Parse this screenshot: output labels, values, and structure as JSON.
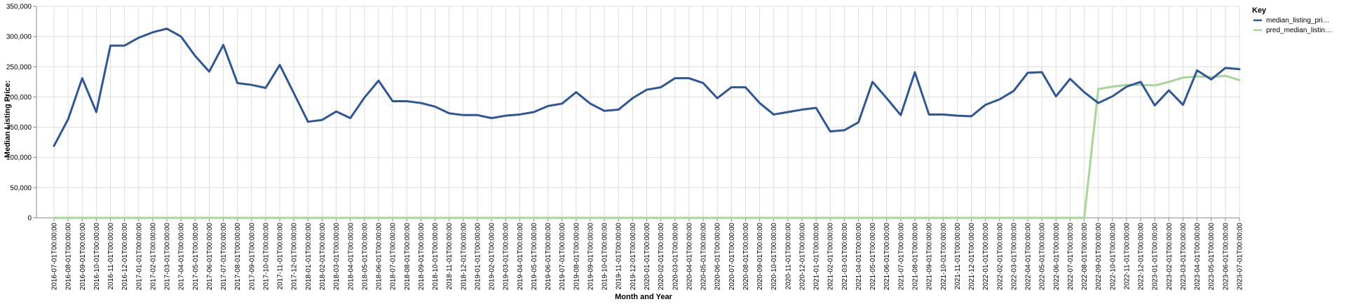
{
  "chart_data": {
    "type": "line",
    "xlabel": "Month and Year",
    "ylabel": "Median Listing Price:",
    "ylim": [
      0,
      350000
    ],
    "yticks": [
      "0",
      "50,000",
      "100,000",
      "150,000",
      "200,000",
      "250,000",
      "300,000",
      "350,000"
    ],
    "grid": true,
    "legend": {
      "title": "Key",
      "placement": "right"
    },
    "x": [
      "2016-07-01T00:00:00",
      "2016-08-01T00:00:00",
      "2016-09-01T00:00:00",
      "2016-10-01T00:00:00",
      "2016-11-01T00:00:00",
      "2016-12-01T00:00:00",
      "2017-01-01T00:00:00",
      "2017-02-01T00:00:00",
      "2017-03-01T00:00:00",
      "2017-04-01T00:00:00",
      "2017-05-01T00:00:00",
      "2017-06-01T00:00:00",
      "2017-07-01T00:00:00",
      "2017-08-01T00:00:00",
      "2017-09-01T00:00:00",
      "2017-10-01T00:00:00",
      "2017-11-01T00:00:00",
      "2017-12-01T00:00:00",
      "2018-01-01T00:00:00",
      "2018-02-01T00:00:00",
      "2018-03-01T00:00:00",
      "2018-04-01T00:00:00",
      "2018-05-01T00:00:00",
      "2018-06-01T00:00:00",
      "2018-07-01T00:00:00",
      "2018-08-01T00:00:00",
      "2018-09-01T00:00:00",
      "2018-10-01T00:00:00",
      "2018-11-01T00:00:00",
      "2018-12-01T00:00:00",
      "2019-01-01T00:00:00",
      "2019-02-01T00:00:00",
      "2019-03-01T00:00:00",
      "2019-04-01T00:00:00",
      "2019-05-01T00:00:00",
      "2019-06-01T00:00:00",
      "2019-07-01T00:00:00",
      "2019-08-01T00:00:00",
      "2019-09-01T00:00:00",
      "2019-10-01T00:00:00",
      "2019-11-01T00:00:00",
      "2019-12-01T00:00:00",
      "2020-01-01T00:00:00",
      "2020-02-01T00:00:00",
      "2020-03-01T00:00:00",
      "2020-04-01T00:00:00",
      "2020-05-01T00:00:00",
      "2020-06-01T00:00:00",
      "2020-07-01T00:00:00",
      "2020-08-01T00:00:00",
      "2020-09-01T00:00:00",
      "2020-10-01T00:00:00",
      "2020-11-01T00:00:00",
      "2020-12-01T00:00:00",
      "2021-01-01T00:00:00",
      "2021-02-01T00:00:00",
      "2021-03-01T00:00:00",
      "2021-04-01T00:00:00",
      "2021-05-01T00:00:00",
      "2021-06-01T00:00:00",
      "2021-07-01T00:00:00",
      "2021-08-01T00:00:00",
      "2021-09-01T00:00:00",
      "2021-10-01T00:00:00",
      "2021-11-01T00:00:00",
      "2021-12-01T00:00:00",
      "2022-01-01T00:00:00",
      "2022-02-01T00:00:00",
      "2022-03-01T00:00:00",
      "2022-04-01T00:00:00",
      "2022-05-01T00:00:00",
      "2022-06-01T00:00:00",
      "2022-07-01T00:00:00",
      "2022-08-01T00:00:00",
      "2022-09-01T00:00:00",
      "2022-10-01T00:00:00",
      "2022-11-01T00:00:00",
      "2022-12-01T00:00:00",
      "2023-01-01T00:00:00",
      "2023-02-01T00:00:00",
      "2023-03-01T00:00:00",
      "2023-04-01T00:00:00",
      "2023-05-01T00:00:00",
      "2023-06-01T00:00:00",
      "2023-07-01T00:00:00"
    ],
    "series": [
      {
        "name": "median_listing_pri…",
        "color": "#2c56a0",
        "values": [
          119000,
          163000,
          231000,
          175000,
          285000,
          285000,
          298000,
          307000,
          313000,
          300000,
          268000,
          242000,
          286000,
          223000,
          220000,
          215000,
          253000,
          206000,
          159000,
          162000,
          176000,
          165000,
          199000,
          227000,
          193000,
          193000,
          190000,
          184000,
          173000,
          170000,
          170000,
          165000,
          169000,
          171000,
          175000,
          185000,
          189000,
          208000,
          189000,
          177000,
          179000,
          198000,
          212000,
          216000,
          231000,
          231000,
          223000,
          198000,
          216000,
          216000,
          190000,
          171000,
          175000,
          179000,
          182000,
          143000,
          145000,
          158000,
          225000,
          198000,
          170000,
          241000,
          171000,
          171000,
          169000,
          168000,
          187000,
          196000,
          210000,
          240000,
          241000,
          201000,
          230000,
          208000,
          190000,
          201000,
          217000,
          225000,
          186000,
          211000,
          187000,
          244000,
          229000,
          248000,
          246000
        ]
      },
      {
        "name": "pred_median_listin…",
        "color": "#a4d894",
        "values": [
          0,
          0,
          0,
          0,
          0,
          0,
          0,
          0,
          0,
          0,
          0,
          0,
          0,
          0,
          0,
          0,
          0,
          0,
          0,
          0,
          0,
          0,
          0,
          0,
          0,
          0,
          0,
          0,
          0,
          0,
          0,
          0,
          0,
          0,
          0,
          0,
          0,
          0,
          0,
          0,
          0,
          0,
          0,
          0,
          0,
          0,
          0,
          0,
          0,
          0,
          0,
          0,
          0,
          0,
          0,
          0,
          0,
          0,
          0,
          0,
          0,
          0,
          0,
          0,
          0,
          0,
          0,
          0,
          0,
          0,
          0,
          0,
          0,
          0,
          213000,
          217000,
          220000,
          220000,
          219000,
          225000,
          232000,
          234000,
          233000,
          235000,
          228000
        ]
      }
    ]
  }
}
